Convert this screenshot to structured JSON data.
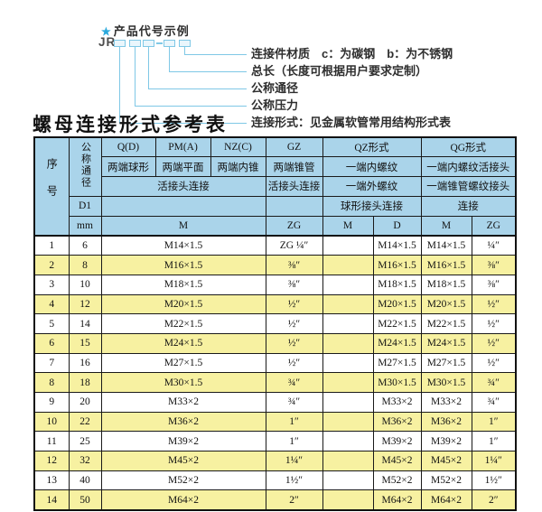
{
  "diagram": {
    "star": "★",
    "heading": "产品代号示例",
    "prefix": "JR",
    "labels": [
      "连接件材质　c：为碳钢　b：为不锈钢",
      "总长（长度可根据用户要求定制）",
      "公称通径",
      "公称压力",
      "连接形式：见金属软管常用结构形式表"
    ]
  },
  "table": {
    "title": "螺母连接形式参考表",
    "header": {
      "seq": "序号",
      "nominal": "公称通径",
      "d1": "D1",
      "mm": "mm",
      "q": "Q(D)",
      "pm": "PM(A)",
      "nz": "NZ(C)",
      "gz": "GZ",
      "qz": "QZ形式",
      "qg": "QG形式",
      "q_desc": "两端球形",
      "pm_desc": "两端平面",
      "nz_desc": "两端内锥",
      "gz_desc": "两端锥管",
      "qz_desc1": "一端内螺纹",
      "qg_desc1": "一端内螺纹活接头",
      "union_conn": "活接头连接",
      "gz_conn": "活接头连接",
      "qz_desc2": "一端外螺纹",
      "qg_desc2": "一端锥管螺纹接头",
      "qz_conn": "球形接头连接",
      "qg_conn": "连接",
      "m1": "M",
      "zg1": "ZG",
      "m2": "M",
      "d": "D",
      "m3": "M",
      "zg2": "ZG"
    },
    "rows": [
      {
        "seq": "1",
        "mm": "6",
        "m": "M14×1.5",
        "zg": "ZG ¼″",
        "qz_m": "",
        "qz_d": "M14×1.5",
        "qg_m": "M14×1.5",
        "qg_zg": "¼″"
      },
      {
        "seq": "2",
        "mm": "8",
        "m": "M16×1.5",
        "zg": "⅜″",
        "qz_m": "",
        "qz_d": "M16×1.5",
        "qg_m": "M16×1.5",
        "qg_zg": "⅜″"
      },
      {
        "seq": "3",
        "mm": "10",
        "m": "M18×1.5",
        "zg": "⅜″",
        "qz_m": "",
        "qz_d": "M18×1.5",
        "qg_m": "M18×1.5",
        "qg_zg": "⅜″"
      },
      {
        "seq": "4",
        "mm": "12",
        "m": "M20×1.5",
        "zg": "½″",
        "qz_m": "",
        "qz_d": "M20×1.5",
        "qg_m": "M20×1.5",
        "qg_zg": "½″"
      },
      {
        "seq": "5",
        "mm": "14",
        "m": "M22×1.5",
        "zg": "½″",
        "qz_m": "",
        "qz_d": "M22×1.5",
        "qg_m": "M22×1.5",
        "qg_zg": "½″"
      },
      {
        "seq": "6",
        "mm": "15",
        "m": "M24×1.5",
        "zg": "½″",
        "qz_m": "",
        "qz_d": "M24×1.5",
        "qg_m": "M24×1.5",
        "qg_zg": "½″"
      },
      {
        "seq": "7",
        "mm": "16",
        "m": "M27×1.5",
        "zg": "½″",
        "qz_m": "",
        "qz_d": "M27×1.5",
        "qg_m": "M27×1.5",
        "qg_zg": "½″"
      },
      {
        "seq": "8",
        "mm": "18",
        "m": "M30×1.5",
        "zg": "¾″",
        "qz_m": "",
        "qz_d": "M30×1.5",
        "qg_m": "M30×1.5",
        "qg_zg": "¾″"
      },
      {
        "seq": "9",
        "mm": "20",
        "m": "M33×2",
        "zg": "¾″",
        "qz_m": "",
        "qz_d": "M33×2",
        "qg_m": "M33×2",
        "qg_zg": "¾″"
      },
      {
        "seq": "10",
        "mm": "22",
        "m": "M36×2",
        "zg": "1″",
        "qz_m": "",
        "qz_d": "M36×2",
        "qg_m": "M36×2",
        "qg_zg": "1″"
      },
      {
        "seq": "11",
        "mm": "25",
        "m": "M39×2",
        "zg": "1″",
        "qz_m": "",
        "qz_d": "M39×2",
        "qg_m": "M39×2",
        "qg_zg": "1″"
      },
      {
        "seq": "12",
        "mm": "32",
        "m": "M45×2",
        "zg": "1¼″",
        "qz_m": "",
        "qz_d": "M45×2",
        "qg_m": "M45×2",
        "qg_zg": "1¼″"
      },
      {
        "seq": "13",
        "mm": "40",
        "m": "M52×2",
        "zg": "1½″",
        "qz_m": "",
        "qz_d": "M52×2",
        "qg_m": "M52×2",
        "qg_zg": "1½″"
      },
      {
        "seq": "14",
        "mm": "50",
        "m": "M64×2",
        "zg": "2″",
        "qz_m": "",
        "qz_d": "M64×2",
        "qg_m": "M64×2",
        "qg_zg": "2″"
      }
    ]
  },
  "colors": {
    "header_bg": "#aad4ea",
    "row_alt_bg": "#f7f1a1",
    "accent_line": "#7fc8e6",
    "star_color": "#29a8dc"
  }
}
